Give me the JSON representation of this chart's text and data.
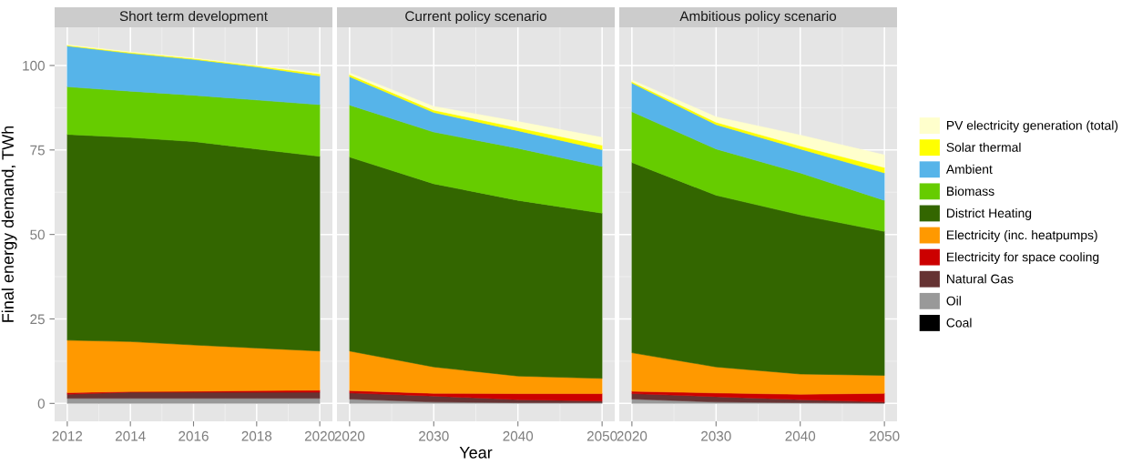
{
  "chart_data": [
    {
      "type": "area",
      "title": "Short term development",
      "ylabel": "Final energy demand, TWh",
      "stacked": true,
      "x": [
        2012,
        2014,
        2016,
        2018,
        2020
      ],
      "xlim": [
        2011.6,
        2020.4
      ],
      "xticks": [
        2012,
        2014,
        2016,
        2018,
        2020
      ],
      "ylim": [
        -5.3,
        111.3
      ],
      "yticks": [
        0,
        25,
        50,
        75,
        100
      ],
      "grid": true,
      "series": [
        {
          "color": "#000000",
          "values": [
            null,
            null,
            null,
            null,
            null
          ]
        },
        {
          "color": "#999999",
          "values": [
            1.5,
            1.5,
            1.5,
            1.5,
            1.5
          ]
        },
        {
          "color": "#663333",
          "values": [
            1.2,
            1.8,
            1.8,
            1.8,
            1.8
          ]
        },
        {
          "color": "#cc0000",
          "values": [
            0.5,
            0.2,
            0.3,
            0.5,
            0.6
          ]
        },
        {
          "color": "#ff9900",
          "values": [
            15.5,
            14.8,
            13.7,
            12.6,
            11.6
          ]
        },
        {
          "color": "#336600",
          "values": [
            60.9,
            60.4,
            60.2,
            58.9,
            57.6
          ]
        },
        {
          "color": "#66cc00",
          "values": [
            14.1,
            13.7,
            13.7,
            14.5,
            15.3
          ]
        },
        {
          "color": "#56b4e9",
          "values": [
            12.1,
            11.2,
            10.6,
            9.8,
            8.5
          ]
        },
        {
          "color": "#ffff00",
          "values": [
            0.2,
            0.3,
            0.3,
            0.3,
            0.6
          ]
        },
        {
          "color": "#ffffcc",
          "values": [
            0.1,
            0.1,
            0.1,
            0.1,
            0.3
          ]
        }
      ]
    },
    {
      "type": "area",
      "title": "Current policy scenario",
      "xlabel": "Year",
      "stacked": true,
      "x": [
        2020,
        2030,
        2040,
        2050
      ],
      "xlim": [
        2018.5,
        2051.5
      ],
      "xticks": [
        2020,
        2030,
        2040,
        2050
      ],
      "ylim": [
        -5.3,
        111.3
      ],
      "yticks": [
        0,
        25,
        50,
        75,
        100
      ],
      "tick_labels": "x",
      "grid": true,
      "series": [
        {
          "color": "#000000",
          "values": [
            null,
            null,
            null,
            null
          ]
        },
        {
          "color": "#999999",
          "values": [
            1.3,
            0.4,
            0.2,
            0.2
          ]
        },
        {
          "color": "#663333",
          "values": [
            1.8,
            1.8,
            0.9,
            0.5
          ]
        },
        {
          "color": "#cc0000",
          "values": [
            0.7,
            0.8,
            1.8,
            2.2
          ]
        },
        {
          "color": "#ff9900",
          "values": [
            11.7,
            7.8,
            5.2,
            4.5
          ]
        },
        {
          "color": "#336600",
          "values": [
            57.4,
            54.2,
            52.0,
            48.9
          ]
        },
        {
          "color": "#66cc00",
          "values": [
            15.4,
            15.3,
            15.4,
            13.8
          ]
        },
        {
          "color": "#56b4e9",
          "values": [
            8.4,
            5.8,
            5.2,
            5.0
          ]
        },
        {
          "color": "#ffff00",
          "values": [
            0.6,
            0.7,
            0.9,
            1.3
          ]
        },
        {
          "color": "#ffffcc",
          "values": [
            0.5,
            1.1,
            1.8,
            2.3
          ]
        }
      ]
    },
    {
      "type": "area",
      "title": "Ambitious policy scenario",
      "stacked": true,
      "x": [
        2020,
        2030,
        2040,
        2050
      ],
      "xlim": [
        2018.5,
        2051.5
      ],
      "xticks": [
        2020,
        2030,
        2040,
        2050
      ],
      "ylim": [
        -5.3,
        111.3
      ],
      "yticks": [
        0,
        25,
        50,
        75,
        100
      ],
      "tick_labels": "x",
      "grid": true,
      "legend": "right",
      "series": [
        {
          "name": "Coal",
          "color": "#000000",
          "values": [
            null,
            null,
            null,
            null
          ]
        },
        {
          "name": "Oil",
          "color": "#999999",
          "values": [
            1.3,
            0.4,
            0.2,
            0.1
          ]
        },
        {
          "name": "Natural Gas",
          "color": "#663333",
          "values": [
            1.6,
            1.6,
            0.9,
            0.3
          ]
        },
        {
          "name": "Electricity for space cooling",
          "color": "#cc0000",
          "values": [
            0.7,
            1.1,
            1.6,
            2.6
          ]
        },
        {
          "name": "Electricity (inc. heatpumps)",
          "color": "#ff9900",
          "values": [
            11.4,
            7.7,
            6.0,
            5.3
          ]
        },
        {
          "name": "District Heating",
          "color": "#336600",
          "values": [
            56.3,
            50.8,
            47.1,
            42.6
          ]
        },
        {
          "name": "Biomass",
          "color": "#66cc00",
          "values": [
            15.0,
            13.7,
            12.4,
            9.2
          ]
        },
        {
          "name": "Ambient",
          "color": "#56b4e9",
          "values": [
            8.5,
            7.2,
            7.1,
            8.1
          ]
        },
        {
          "name": "Solar thermal",
          "color": "#ffff00",
          "values": [
            0.4,
            0.7,
            0.9,
            1.6
          ]
        },
        {
          "name": "PV electricity generation (total)",
          "color": "#ffffcc",
          "values": [
            0.5,
            1.6,
            3.2,
            3.7
          ]
        }
      ]
    }
  ]
}
